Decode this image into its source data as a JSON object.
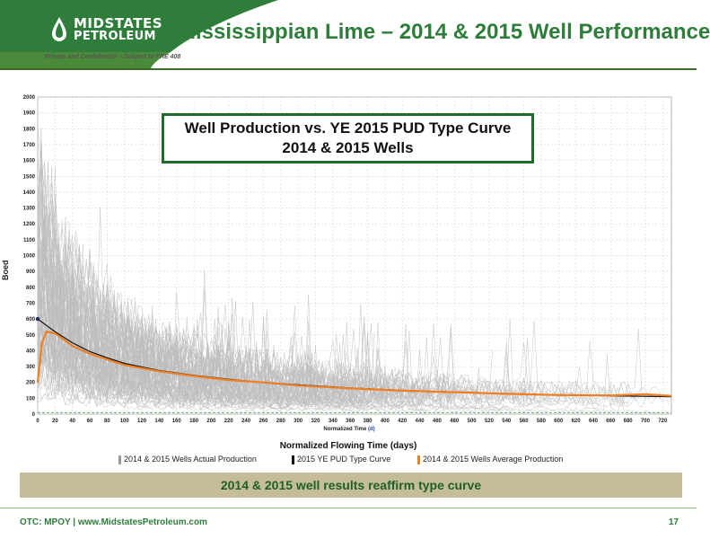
{
  "header": {
    "logo_top": "MIDSTATES",
    "logo_bottom": "PETROLEUM",
    "title": "Mississippian Lime – 2014 & 2015 Well Performance",
    "confidential": "Private and Confidential – Subject to FRE 408"
  },
  "chart_data": {
    "type": "line",
    "title": "Well Production vs. YE 2015 PUD Type Curve",
    "subtitle": "2014 & 2015 Wells",
    "xlabel": "Normalized Flowing Time (days)",
    "x_axis_inner_label": "Normalized Time",
    "x_axis_inner_unit": "(d)",
    "ylabel": "Boed",
    "xlim": [
      0,
      730
    ],
    "ylim": [
      0,
      2000
    ],
    "x_ticks": [
      0,
      20,
      40,
      60,
      80,
      100,
      120,
      140,
      160,
      180,
      200,
      220,
      240,
      260,
      280,
      300,
      320,
      340,
      360,
      380,
      400,
      420,
      440,
      460,
      480,
      500,
      520,
      540,
      560,
      580,
      600,
      620,
      640,
      660,
      680,
      700,
      720
    ],
    "y_ticks": [
      0,
      100,
      200,
      300,
      400,
      500,
      600,
      700,
      800,
      900,
      1000,
      1100,
      1200,
      1300,
      1400,
      1500,
      1600,
      1700,
      1800,
      1900,
      2000
    ],
    "grid": true,
    "series": [
      {
        "name": "2014 & 2015 Wells Actual Production",
        "color": "#b0b0b0"
      },
      {
        "name": "2015 YE PUD Type Curve",
        "color": "#111111",
        "x": [
          0,
          10,
          20,
          40,
          60,
          80,
          100,
          140,
          180,
          220,
          260,
          300,
          360,
          420,
          480,
          540,
          600,
          660,
          730
        ],
        "values": [
          600,
          560,
          520,
          450,
          395,
          355,
          320,
          275,
          245,
          220,
          200,
          185,
          165,
          150,
          140,
          130,
          122,
          115,
          110
        ]
      },
      {
        "name": "2014 & 2015 Wells Average Production",
        "color": "#f07f22",
        "x": [
          0,
          5,
          10,
          20,
          30,
          40,
          60,
          80,
          100,
          140,
          180,
          220,
          260,
          300,
          360,
          420,
          480,
          540,
          600,
          660,
          700,
          730
        ],
        "values": [
          200,
          450,
          520,
          510,
          470,
          430,
          380,
          345,
          310,
          270,
          240,
          215,
          200,
          180,
          162,
          148,
          138,
          128,
          120,
          118,
          125,
          115
        ]
      }
    ]
  },
  "legend_items": [
    "2014 & 2015 Wells Actual Production",
    "2015 YE PUD Type Curve",
    "2014 & 2015 Wells Average Production"
  ],
  "banner": "2014 & 2015 well results reaffirm type curve",
  "footer": "OTC: MPOY | www.MidstatesPetroleum.com",
  "page_number": "17",
  "colors": {
    "brand_green": "#2e7d3a",
    "dark_green": "#1f6b2a",
    "banner_tan": "#c5bd99"
  }
}
